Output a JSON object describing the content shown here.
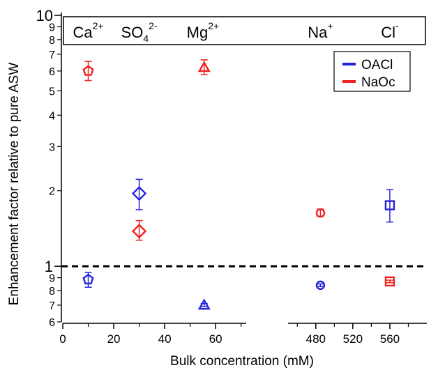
{
  "chart_data": {
    "type": "scatter",
    "ylabel": "Enhancement factor relative to pure ASW",
    "xlabel": "Bulk concentration (mM)",
    "yscale": "log",
    "ylim": [
      0.6,
      10
    ],
    "grid": false,
    "x_segments": [
      {
        "range": [
          0,
          72
        ],
        "ticks": [
          0,
          20,
          40,
          60
        ]
      },
      {
        "range": [
          450,
          600
        ],
        "ticks": [
          480,
          520,
          560
        ]
      }
    ],
    "y_major_ticks": [
      {
        "value": 1,
        "label": "1"
      },
      {
        "value": 10,
        "label": "10"
      }
    ],
    "y_minor_ticks": [
      {
        "value": 0.6,
        "label": "6"
      },
      {
        "value": 0.7,
        "label": "7"
      },
      {
        "value": 0.8,
        "label": "8"
      },
      {
        "value": 0.9,
        "label": "9"
      },
      {
        "value": 2,
        "label": "2"
      },
      {
        "value": 3,
        "label": "3"
      },
      {
        "value": 4,
        "label": "4"
      },
      {
        "value": 5,
        "label": "5"
      },
      {
        "value": 6,
        "label": "6"
      },
      {
        "value": 7,
        "label": "7"
      },
      {
        "value": 8,
        "label": "8"
      },
      {
        "value": 9,
        "label": "9"
      }
    ],
    "reference_line": {
      "y": 1,
      "style": "dashed"
    },
    "ions": [
      {
        "base": "Ca",
        "sup": "2+",
        "sub": "",
        "x": 10
      },
      {
        "base": "SO",
        "sup": "2-",
        "sub": "4",
        "x": 30
      },
      {
        "base": "Mg",
        "sup": "2+",
        "sub": "",
        "x": 55
      },
      {
        "base": "Na",
        "sup": "+",
        "sub": "",
        "x": 485
      },
      {
        "base": "Cl",
        "sup": "-",
        "sub": "",
        "x": 560
      }
    ],
    "legend": {
      "placement": "top-right"
    },
    "series": [
      {
        "name": "OACl",
        "color": "#2222dd",
        "points": [
          {
            "x": 10,
            "y": 0.885,
            "err_low": 0.825,
            "err_high": 0.945,
            "marker": "pentagon"
          },
          {
            "x": 30,
            "y": 1.95,
            "err_low": 1.68,
            "err_high": 2.22,
            "marker": "diamond"
          },
          {
            "x": 55.5,
            "y": 0.7,
            "err_low": 0.69,
            "err_high": 0.71,
            "marker": "triangle"
          },
          {
            "x": 485,
            "y": 0.84,
            "err_low": 0.83,
            "err_high": 0.85,
            "marker": "circle"
          },
          {
            "x": 560,
            "y": 1.75,
            "err_low": 1.5,
            "err_high": 2.02,
            "marker": "square"
          }
        ]
      },
      {
        "name": "NaOc",
        "color": "#ee2222",
        "points": [
          {
            "x": 10,
            "y": 6.0,
            "err_low": 5.5,
            "err_high": 6.55,
            "marker": "pentagon"
          },
          {
            "x": 30,
            "y": 1.38,
            "err_low": 1.27,
            "err_high": 1.52,
            "marker": "diamond"
          },
          {
            "x": 55.5,
            "y": 6.2,
            "err_low": 5.8,
            "err_high": 6.65,
            "marker": "triangle"
          },
          {
            "x": 485,
            "y": 1.63,
            "err_low": 1.58,
            "err_high": 1.69,
            "marker": "circle"
          },
          {
            "x": 560,
            "y": 0.87,
            "err_low": 0.86,
            "err_high": 0.88,
            "marker": "square"
          }
        ]
      }
    ]
  }
}
